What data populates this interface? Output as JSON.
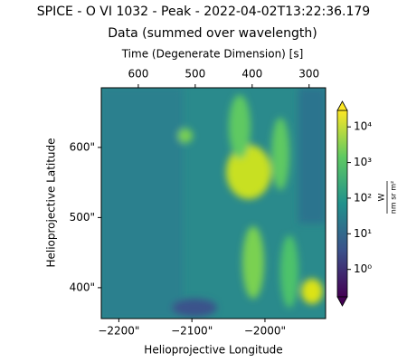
{
  "chart_data": {
    "type": "image",
    "title": "SPICE - O VI 1032 - Peak - 2022-04-02T13:22:36.179",
    "subtitle": "Data (summed over wavelength)",
    "top_xlabel": "Time (Degenerate Dimension) [s]",
    "xlabel": "Helioprojective Longitude",
    "ylabel": "Helioprojective Latitude",
    "xlim": [
      -2224,
      -1917
    ],
    "xticks": [
      {
        "value": -2200,
        "label": "−2200\""
      },
      {
        "value": -2100,
        "label": "−2100\""
      },
      {
        "value": -2000,
        "label": "−2000\""
      }
    ],
    "ylim": [
      356,
      685
    ],
    "yticks": [
      {
        "value": 400,
        "label": "400\""
      },
      {
        "value": 500,
        "label": "500\""
      },
      {
        "value": 600,
        "label": "600\""
      }
    ],
    "top_xlim": [
      665,
      271
    ],
    "top_xticks": [
      600,
      500,
      400,
      300
    ],
    "colorbar": {
      "log": true,
      "lim": [
        0.17,
        29000
      ],
      "label_numerator": "W",
      "label_denominator": "nm sr m²",
      "ticks": [
        {
          "value": 1,
          "label": "10⁰"
        },
        {
          "value": 10,
          "label": "10¹"
        },
        {
          "value": 100,
          "label": "10²"
        },
        {
          "value": 1000,
          "label": "10³"
        },
        {
          "value": 10000,
          "label": "10⁴"
        }
      ]
    }
  }
}
